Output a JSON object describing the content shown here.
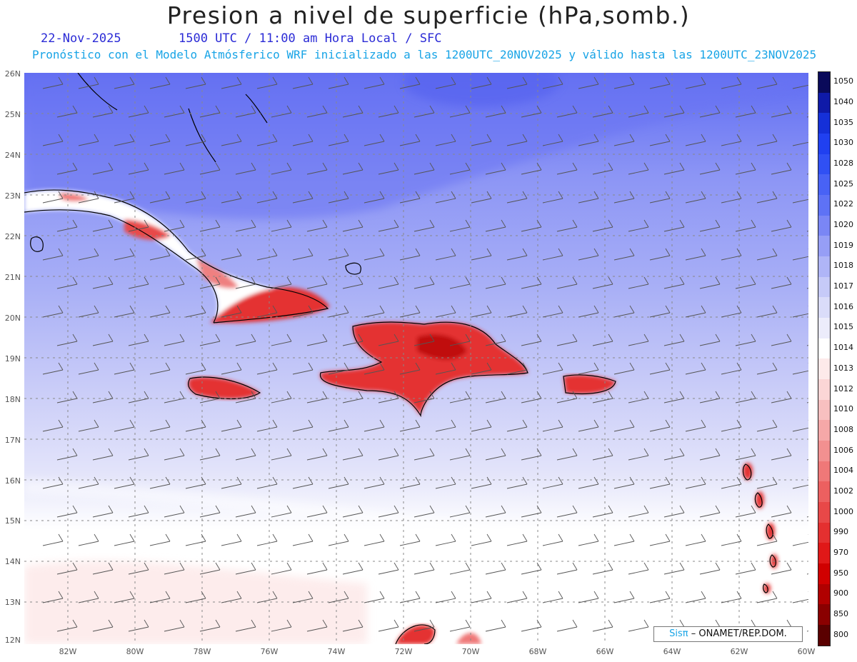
{
  "title": "Presion a nivel de superficie (hPa,somb.)",
  "date": "22-Nov-2025",
  "time_info": "1500 UTC / 11:00 am Hora Local / SFC",
  "forecast_info": "Pronóstico con el Modelo Atmósferico WRF inicializado a las 1200UTC_20NOV2025 y válido hasta las  1200UTC_23NOV2025",
  "lat_labels": [
    "26N",
    "25N",
    "24N",
    "23N",
    "22N",
    "21N",
    "20N",
    "19N",
    "18N",
    "17N",
    "16N",
    "15N",
    "14N",
    "13N",
    "12N"
  ],
  "lon_labels": [
    "82W",
    "80W",
    "78W",
    "76W",
    "74W",
    "72W",
    "70W",
    "68W",
    "66W",
    "64W",
    "62W",
    "60W"
  ],
  "colorbar": {
    "labels": [
      "1050",
      "1040",
      "1035",
      "1030",
      "1028",
      "1025",
      "1022",
      "1020",
      "1019",
      "1018",
      "1017",
      "1016",
      "1015",
      "1014",
      "1013",
      "1012",
      "1010",
      "1008",
      "1006",
      "1004",
      "1002",
      "1000",
      "990",
      "970",
      "950",
      "900",
      "850",
      "800"
    ],
    "colors": [
      "#0a0a5a",
      "#0f1aa8",
      "#1530d8",
      "#2040f0",
      "#3050f4",
      "#4862f5",
      "#5e72f5",
      "#7a86f5",
      "#969ef6",
      "#afb5f7",
      "#c6caf8",
      "#dadcf9",
      "#ececfb",
      "#ffffff",
      "#fdeaea",
      "#fbd6d6",
      "#f8c0c0",
      "#f5a8a8",
      "#f29090",
      "#ef7878",
      "#ec6060",
      "#e84848",
      "#e43030",
      "#e01818",
      "#d00000",
      "#b00000",
      "#8a0000",
      "#5a0000"
    ]
  },
  "credit": {
    "brand": "Sisπ",
    "text": "– ONAMET/REP.DOM."
  },
  "colors": {
    "high_pressure": "#6470f5",
    "mid_pressure": "#afb5f7",
    "low_pressure_land": "#e43030",
    "neutral": "#ffffff"
  }
}
